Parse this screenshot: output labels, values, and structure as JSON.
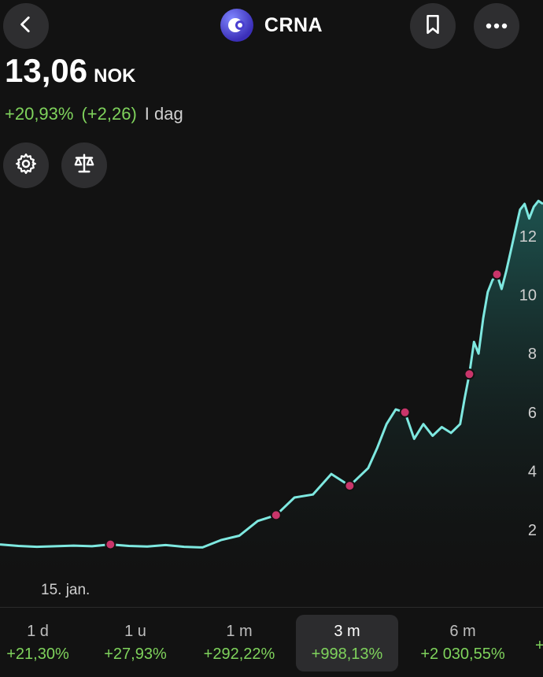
{
  "header": {
    "ticker": "CRNA",
    "back_icon": "chevron-left-icon",
    "bookmark_icon": "bookmark-icon",
    "more_icon": "more-horizontal-icon",
    "logo_icon": "company-logo"
  },
  "quote": {
    "price": "13,06",
    "currency": "NOK",
    "change_pct": "+20,93%",
    "change_abs": "(+2,26)",
    "period": "I dag"
  },
  "tools": {
    "settings_icon": "gear-icon",
    "compare_icon": "scale-icon"
  },
  "chart_data": {
    "type": "line",
    "x_label_visible": "15. jan.",
    "y_ticks": [
      "2",
      "4",
      "6",
      "8",
      "10",
      "12"
    ],
    "ylim": [
      0,
      13
    ],
    "grid": false,
    "line_color": "#7ee8e0",
    "marker_color": "#c8356a",
    "series": [
      {
        "x": [
          0,
          4,
          8,
          12,
          16,
          20,
          24,
          28,
          32,
          36,
          40,
          44,
          48,
          52,
          56,
          60,
          64,
          68,
          72,
          76,
          80,
          82,
          84,
          86,
          88,
          90,
          92,
          94,
          96,
          98,
          100,
          101,
          102,
          103,
          104,
          105,
          106,
          107,
          108,
          109,
          110,
          111,
          112,
          113,
          114,
          115,
          116,
          117,
          118,
          119,
          120,
          121,
          122,
          123,
          124,
          125,
          126,
          127,
          128,
          129,
          130
        ],
        "values": [
          1.5,
          1.45,
          1.42,
          1.44,
          1.46,
          1.44,
          1.5,
          1.45,
          1.43,
          1.48,
          1.42,
          1.4,
          1.65,
          1.8,
          2.3,
          2.5,
          3.1,
          3.2,
          3.9,
          3.5,
          4.1,
          4.8,
          5.6,
          6.1,
          6.0,
          5.1,
          5.6,
          5.2,
          5.5,
          5.3,
          5.6,
          6.5,
          7.3,
          8.4,
          8.0,
          9.2,
          10.1,
          10.5,
          10.7,
          10.2,
          10.8,
          11.5,
          12.2,
          12.9,
          13.1,
          12.6,
          13.0,
          13.2,
          13.1,
          13.0,
          13.06,
          12.9,
          13.0,
          13.1,
          13.0,
          13.06,
          13.0,
          13.05,
          13.06,
          13.02,
          13.06
        ],
        "markers_at": [
          24,
          60,
          76,
          88,
          102,
          108
        ]
      }
    ]
  },
  "tabs": [
    {
      "label": "1 d",
      "value": "+21,30%"
    },
    {
      "label": "1 u",
      "value": "+27,93%"
    },
    {
      "label": "1 m",
      "value": "+292,22%"
    },
    {
      "label": "3 m",
      "value": "+998,13%",
      "active": true
    },
    {
      "label": "6 m",
      "value": "+2 030,55%"
    },
    {
      "label": "",
      "value": "+"
    }
  ]
}
